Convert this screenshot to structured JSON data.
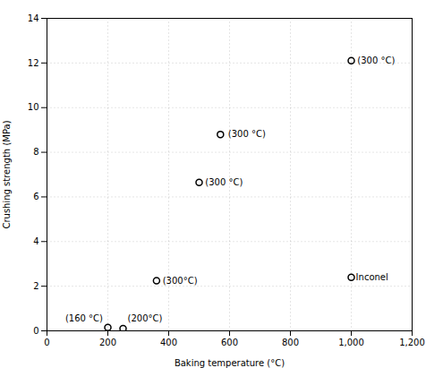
{
  "chart_data": {
    "type": "scatter",
    "x": [
      200,
      250,
      360,
      500,
      570,
      1000,
      1000
    ],
    "values": [
      0.15,
      0.1,
      2.25,
      6.65,
      8.8,
      12.1,
      2.4
    ],
    "marker": "circle",
    "annotations": [
      {
        "text": "(300°C)",
        "x": 380,
        "y": 2.25
      },
      {
        "text": "(300 °C)",
        "x": 520,
        "y": 6.65
      },
      {
        "text": "(300 °C)",
        "x": 595,
        "y": 8.8
      },
      {
        "text": "(300 °C)",
        "x": 1020,
        "y": 12.1
      },
      {
        "text": "Inconel",
        "x": 1015,
        "y": 2.4
      },
      {
        "text": "(160 °C)",
        "x": 60,
        "y": 0.55
      },
      {
        "text": "(200°C)",
        "x": 265,
        "y": 0.55
      }
    ],
    "xlabel": "Baking temperature (°C)",
    "ylabel": "Crushing strength (MPa)",
    "xlim": [
      0,
      1200
    ],
    "ylim": [
      0,
      14
    ],
    "xticks": [
      0,
      200,
      400,
      600,
      800,
      1000,
      1200
    ],
    "yticks": [
      0,
      2,
      4,
      6,
      8,
      10,
      12,
      14
    ],
    "grid": true
  }
}
